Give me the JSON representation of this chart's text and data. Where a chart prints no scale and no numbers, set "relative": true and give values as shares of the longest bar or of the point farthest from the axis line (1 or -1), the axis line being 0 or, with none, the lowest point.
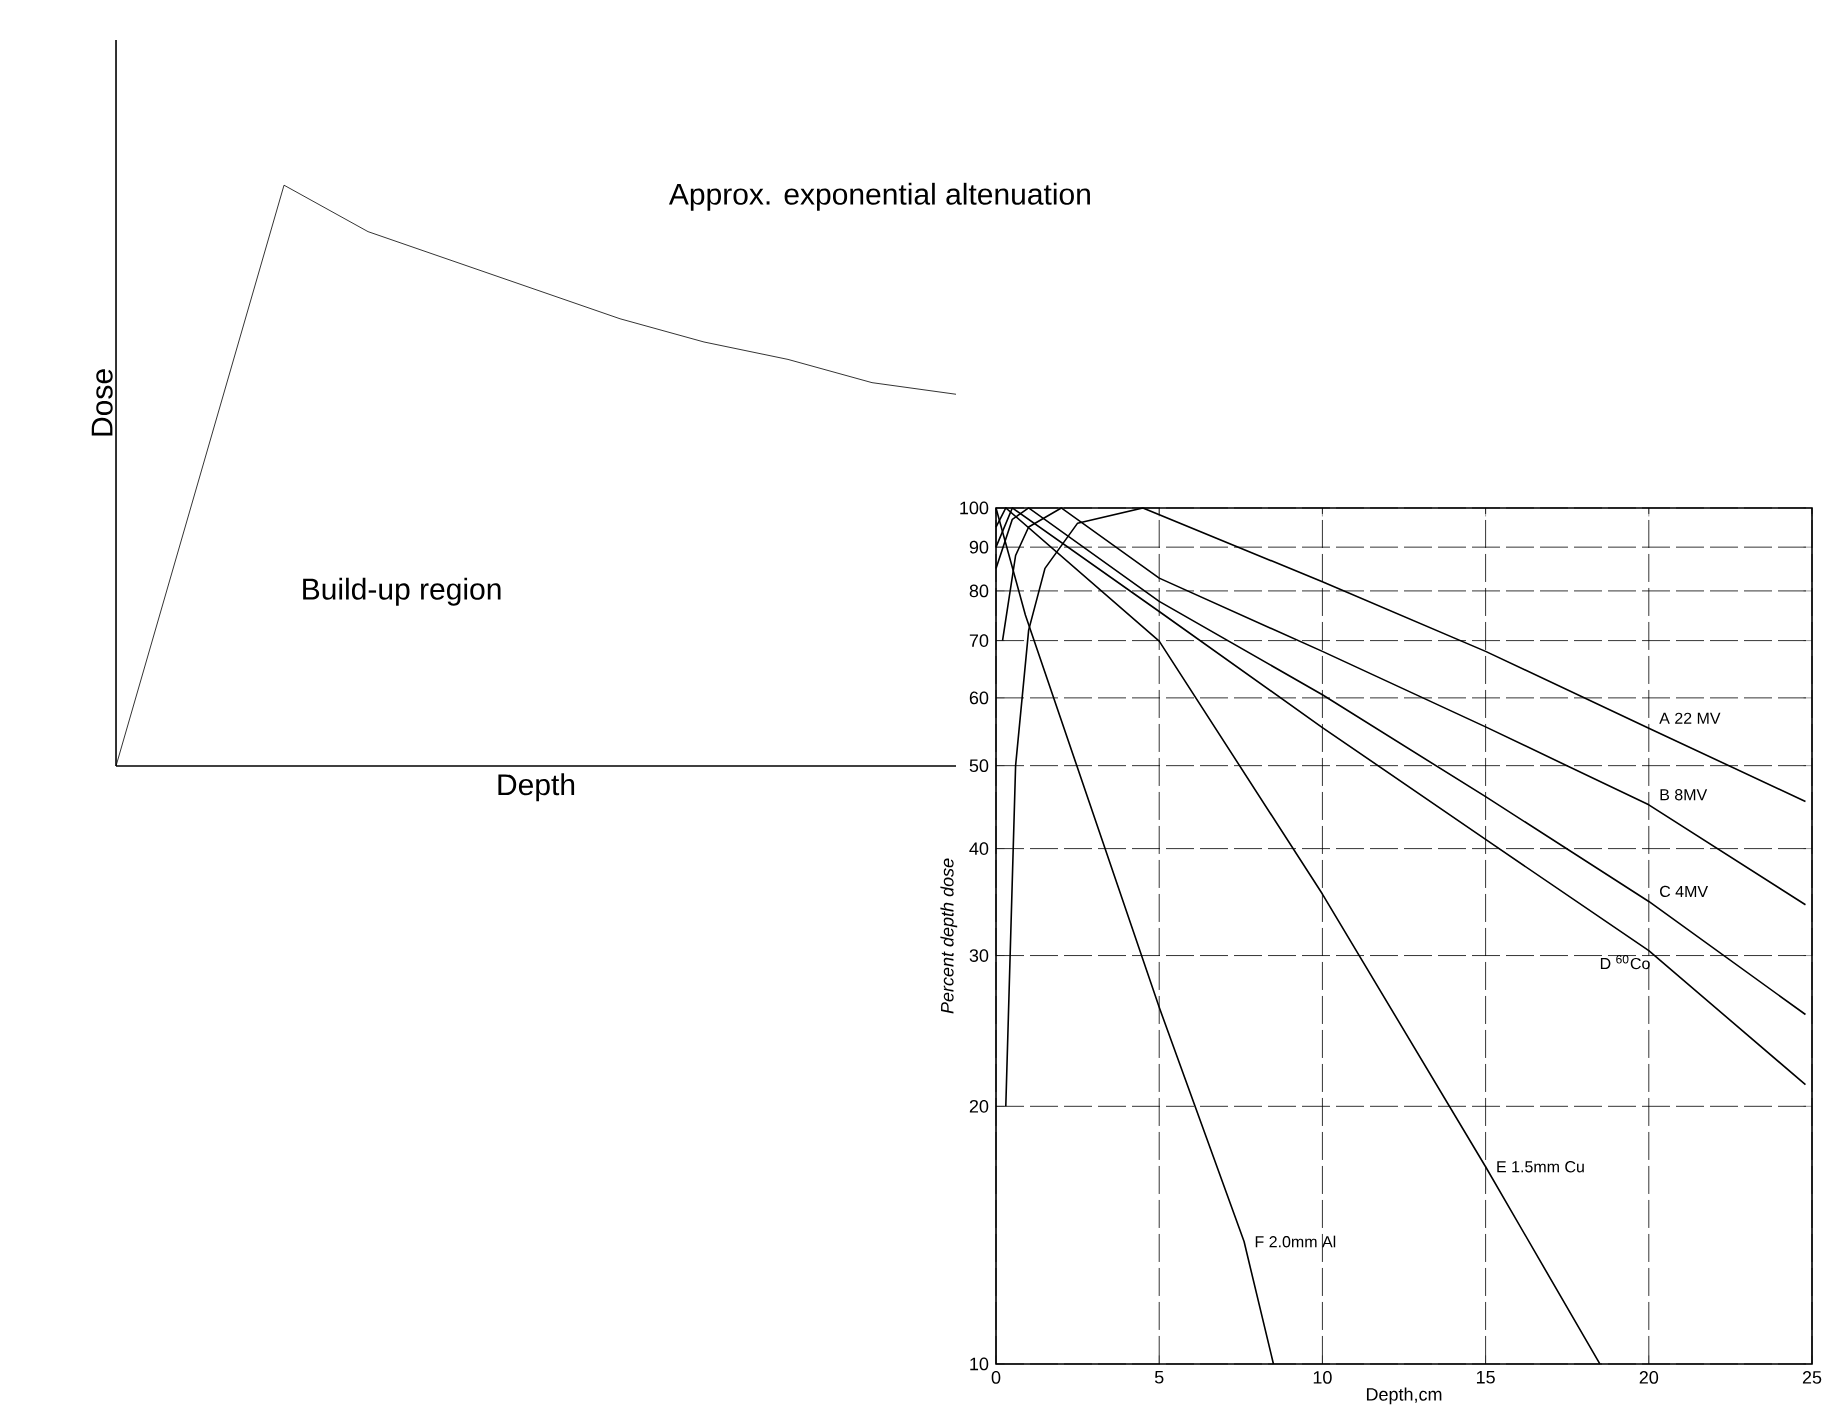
{
  "chart_data": [
    {
      "type": "line",
      "relative": true,
      "xlabel": "Depth",
      "ylabel": "Dose",
      "color": "#000000",
      "categories": [
        null,
        null,
        null,
        null,
        null,
        null,
        null,
        null,
        null,
        null,
        null
      ],
      "values": [
        0,
        0.5,
        1.0,
        0.92,
        0.87,
        0.82,
        0.77,
        0.73,
        0.7,
        0.66,
        0.64
      ],
      "annotations": [
        "Approx. exponential altenuation",
        "Build-up region"
      ]
    },
    {
      "type": "line",
      "xlabel": "Depth,cm",
      "ylabel": "Percent depth dose",
      "log": "y",
      "grid": true,
      "marker": "none",
      "xlim": [
        0,
        25
      ],
      "xticks": [
        0,
        5,
        10,
        15,
        20,
        25
      ],
      "ylim": [
        10,
        100
      ],
      "yticks": [
        10,
        20,
        30,
        40,
        50,
        60,
        70,
        80,
        90,
        100
      ],
      "series": [
        {
          "name": "A 22 MV",
          "color": "#000000",
          "x": [
            0.3,
            0.6,
            1,
            1.5,
            2.5,
            4.5,
            10,
            15,
            20,
            24.8
          ],
          "values": [
            20,
            50,
            72,
            85,
            96,
            100,
            82,
            68,
            55.3,
            45.4
          ]
        },
        {
          "name": "B 8MV",
          "color": "#000000",
          "x": [
            0.2,
            0.6,
            1,
            2,
            5,
            10,
            15,
            20,
            24.8
          ],
          "values": [
            70,
            88,
            95,
            100,
            82.8,
            68,
            55.5,
            45,
            34.4
          ]
        },
        {
          "name": "C 4MV",
          "color": "#000000",
          "x": [
            0,
            0.5,
            1,
            5,
            10,
            15,
            20,
            24.8
          ],
          "values": [
            85,
            97,
            100,
            77.8,
            60.5,
            46,
            34.7,
            25.6
          ]
        },
        {
          "name": "D $^{60}$Co",
          "color": "#000000",
          "x": [
            0,
            0.5,
            5,
            10,
            15,
            20,
            24.8
          ],
          "values": [
            90,
            100,
            75.7,
            55.4,
            41,
            30.4,
            21.2
          ]
        },
        {
          "name": "E 1.5mm Cu",
          "color": "#000000",
          "x": [
            0,
            0.3,
            5,
            10,
            15,
            18.5
          ],
          "values": [
            95,
            100,
            69.9,
            35.4,
            17,
            10
          ]
        },
        {
          "name": "F 2.0mm Al",
          "color": "#000000",
          "x": [
            0,
            0.9,
            5,
            7.6,
            8.5
          ],
          "values": [
            100,
            75,
            26.1,
            13.9,
            10
          ]
        }
      ]
    }
  ]
}
